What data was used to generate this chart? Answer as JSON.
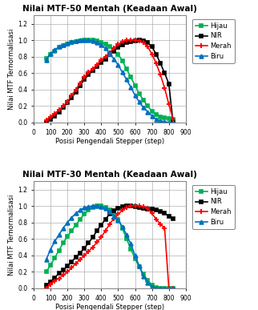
{
  "plot1": {
    "title": "Nilai MTF-50 Mentah (Keadaan Awal)",
    "xlabel": "Posisi Pengendali Stepper (step)",
    "ylabel": "Nilai MTF Ternormalisasi",
    "xlim": [
      0,
      900
    ],
    "ylim": [
      0,
      1.3
    ],
    "yticks": [
      0,
      0.2,
      0.4,
      0.6,
      0.8,
      1.0,
      1.2
    ],
    "xticks": [
      0,
      100,
      200,
      300,
      400,
      500,
      600,
      700,
      800,
      900
    ],
    "xticklabels": [
      "0",
      "100",
      "200",
      "300",
      "400",
      "500",
      "600",
      "700",
      "800",
      "900"
    ],
    "hijau": {
      "x": [
        75,
        100,
        125,
        150,
        175,
        200,
        225,
        250,
        275,
        300,
        325,
        350,
        375,
        400,
        425,
        450,
        475,
        500,
        525,
        550,
        575,
        600,
        625,
        650,
        675,
        700,
        725,
        750,
        775,
        800,
        825
      ],
      "y": [
        0.78,
        0.83,
        0.87,
        0.91,
        0.93,
        0.95,
        0.97,
        0.98,
        0.99,
        1.0,
        1.0,
        1.0,
        0.99,
        0.97,
        0.95,
        0.92,
        0.88,
        0.83,
        0.75,
        0.65,
        0.55,
        0.45,
        0.35,
        0.27,
        0.2,
        0.14,
        0.1,
        0.07,
        0.06,
        0.05,
        0.04
      ],
      "color": "#00B050",
      "marker": "s",
      "label": "Hijau"
    },
    "nir": {
      "x": [
        75,
        100,
        125,
        150,
        175,
        200,
        225,
        250,
        275,
        300,
        325,
        350,
        375,
        400,
        425,
        450,
        475,
        500,
        525,
        550,
        575,
        600,
        625,
        650,
        675,
        700,
        725,
        750,
        775,
        800,
        825
      ],
      "y": [
        0.0,
        0.04,
        0.08,
        0.13,
        0.18,
        0.24,
        0.3,
        0.37,
        0.45,
        0.52,
        0.58,
        0.63,
        0.68,
        0.73,
        0.77,
        0.83,
        0.87,
        0.91,
        0.94,
        0.97,
        0.98,
        0.99,
        1.0,
        0.99,
        0.97,
        0.92,
        0.83,
        0.72,
        0.6,
        0.47,
        0.0
      ],
      "color": "#000000",
      "marker": "s",
      "label": "NIR"
    },
    "merah": {
      "x": [
        75,
        100,
        125,
        150,
        175,
        200,
        225,
        250,
        275,
        300,
        325,
        350,
        375,
        400,
        425,
        450,
        475,
        500,
        525,
        550,
        575,
        600,
        625,
        650,
        675,
        700,
        725,
        750,
        775,
        800,
        825
      ],
      "y": [
        0.03,
        0.07,
        0.11,
        0.15,
        0.2,
        0.25,
        0.33,
        0.4,
        0.48,
        0.55,
        0.61,
        0.65,
        0.7,
        0.76,
        0.8,
        0.85,
        0.9,
        0.95,
        0.98,
        1.0,
        1.0,
        1.0,
        0.99,
        0.97,
        0.92,
        0.83,
        0.72,
        0.58,
        0.42,
        0.22,
        0.04
      ],
      "color": "#FF0000",
      "marker": "+",
      "label": "Merah"
    },
    "biru": {
      "x": [
        75,
        100,
        125,
        150,
        175,
        200,
        225,
        250,
        275,
        300,
        325,
        350,
        375,
        400,
        425,
        450,
        475,
        500,
        525,
        550,
        575,
        600,
        625,
        650,
        675,
        700,
        725,
        750,
        775,
        800,
        825
      ],
      "y": [
        0.76,
        0.84,
        0.88,
        0.92,
        0.94,
        0.96,
        0.98,
        0.99,
        1.0,
        1.0,
        1.0,
        0.99,
        0.97,
        0.94,
        0.9,
        0.84,
        0.77,
        0.7,
        0.61,
        0.52,
        0.43,
        0.33,
        0.25,
        0.18,
        0.13,
        0.08,
        0.04,
        0.02,
        0.01,
        0.0,
        0.0
      ],
      "color": "#0070C0",
      "marker": "^",
      "label": "Biru"
    }
  },
  "plot2": {
    "title": "Nilai MTF-30 Mentah (Keadaan Awal)",
    "xlabel": "Posisi Pengendali Stepper (step)",
    "ylabel": "Nilai MTF Ternormalisasi",
    "xlim": [
      0,
      900
    ],
    "ylim": [
      0,
      1.3
    ],
    "yticks": [
      0,
      0.2,
      0.4,
      0.6,
      0.8,
      1.0,
      1.2
    ],
    "xticks": [
      0,
      100,
      200,
      300,
      400,
      500,
      600,
      700,
      800,
      900
    ],
    "xticklabels": [
      "0",
      "100",
      "200",
      "300",
      "400",
      "500",
      "600",
      "700",
      "800",
      "900"
    ],
    "hijau": {
      "x": [
        75,
        100,
        125,
        150,
        175,
        200,
        225,
        250,
        275,
        300,
        325,
        350,
        375,
        400,
        425,
        450,
        475,
        500,
        525,
        550,
        575,
        600,
        625,
        650,
        675,
        700,
        725,
        750,
        775,
        800,
        825
      ],
      "y": [
        0.2,
        0.28,
        0.37,
        0.46,
        0.55,
        0.63,
        0.7,
        0.77,
        0.84,
        0.9,
        0.95,
        0.98,
        1.0,
        1.0,
        0.98,
        0.95,
        0.9,
        0.84,
        0.73,
        0.6,
        0.48,
        0.36,
        0.26,
        0.17,
        0.1,
        0.04,
        0.01,
        0.0,
        0.0,
        0.0,
        0.0
      ],
      "color": "#00B050",
      "marker": "s",
      "label": "Hijau"
    },
    "nir": {
      "x": [
        75,
        100,
        125,
        150,
        175,
        200,
        225,
        250,
        275,
        300,
        325,
        350,
        375,
        400,
        425,
        450,
        475,
        500,
        525,
        550,
        575,
        600,
        625,
        650,
        675,
        700,
        725,
        750,
        775,
        800,
        825
      ],
      "y": [
        0.04,
        0.08,
        0.13,
        0.18,
        0.22,
        0.27,
        0.32,
        0.38,
        0.43,
        0.49,
        0.55,
        0.62,
        0.7,
        0.77,
        0.84,
        0.9,
        0.94,
        0.97,
        0.99,
        1.0,
        1.0,
        0.99,
        0.98,
        0.97,
        0.96,
        0.96,
        0.95,
        0.93,
        0.91,
        0.88,
        0.85
      ],
      "color": "#000000",
      "marker": "s",
      "label": "NIR"
    },
    "merah": {
      "x": [
        75,
        100,
        125,
        150,
        175,
        200,
        225,
        250,
        275,
        300,
        325,
        350,
        375,
        400,
        425,
        450,
        475,
        500,
        525,
        550,
        575,
        600,
        625,
        650,
        675,
        700,
        725,
        750,
        775,
        800,
        825
      ],
      "y": [
        0.0,
        0.05,
        0.09,
        0.12,
        0.16,
        0.2,
        0.25,
        0.3,
        0.35,
        0.4,
        0.45,
        0.5,
        0.56,
        0.62,
        0.7,
        0.78,
        0.85,
        0.9,
        0.95,
        0.98,
        1.0,
        1.0,
        1.0,
        0.99,
        0.97,
        0.91,
        0.84,
        0.78,
        0.73,
        0.0,
        0.0
      ],
      "color": "#FF0000",
      "marker": "+",
      "label": "Merah"
    },
    "biru": {
      "x": [
        75,
        100,
        125,
        150,
        175,
        200,
        225,
        250,
        275,
        300,
        325,
        350,
        375,
        400,
        425,
        450,
        475,
        500,
        525,
        550,
        575,
        600,
        625,
        650,
        675,
        700,
        725,
        750,
        775,
        800,
        825
      ],
      "y": [
        0.35,
        0.47,
        0.57,
        0.65,
        0.73,
        0.8,
        0.86,
        0.91,
        0.95,
        0.98,
        0.99,
        1.0,
        1.0,
        0.99,
        0.97,
        0.93,
        0.88,
        0.83,
        0.75,
        0.65,
        0.54,
        0.4,
        0.27,
        0.15,
        0.07,
        0.02,
        0.0,
        0.0,
        0.0,
        0.0,
        0.0
      ],
      "color": "#0070C0",
      "marker": "^",
      "label": "Biru"
    }
  },
  "bg_color": "#ffffff",
  "panel_bg": "#ffffff",
  "grid_color": "#b0b0b0",
  "border_color": "#808080",
  "series_order": [
    "hijau",
    "nir",
    "merah",
    "biru"
  ],
  "figsize": [
    3.22,
    3.87
  ],
  "dpi": 100,
  "title_fontsize": 7.5,
  "label_fontsize": 6.0,
  "tick_fontsize": 5.5,
  "legend_fontsize": 6.0,
  "marker_size": 3.5,
  "line_width": 1.2
}
